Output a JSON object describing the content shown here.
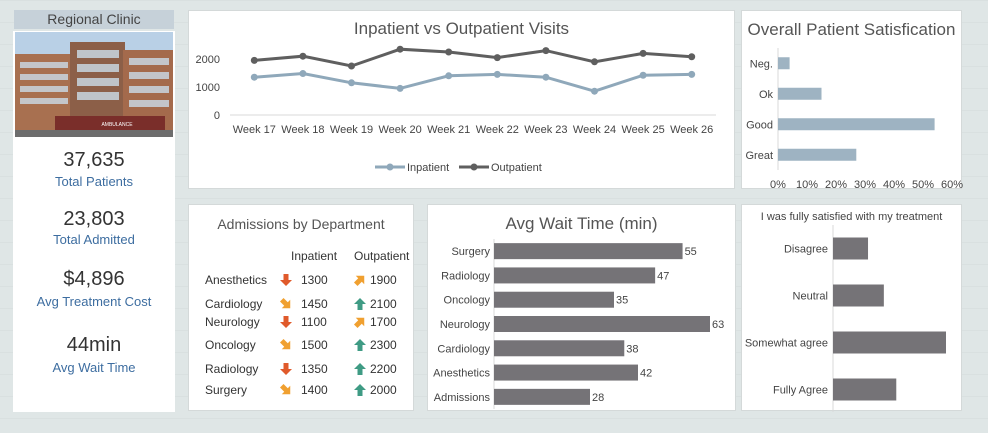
{
  "kpi": {
    "title": "Regional Clinic",
    "building_sign": "AMBULANCE",
    "items": [
      {
        "value": "37,635",
        "label": "Total Patients"
      },
      {
        "value": "23,803",
        "label": "Total Admitted"
      },
      {
        "value": "$4,896",
        "label": "Avg Treatment Cost"
      },
      {
        "value": "44min",
        "label": "Avg Wait Time"
      }
    ]
  },
  "colors": {
    "inpatient": "#8fa8ba",
    "outpatient": "#5f5f5f",
    "bar_blue": "#9eb3c2",
    "bar_gray": "#757377",
    "up_green": "#3f9b84",
    "down_red": "#e05a2b",
    "side_orange": "#f0a030"
  },
  "chart_data": [
    {
      "type": "line",
      "title": "Inpatient vs Outpatient Visits",
      "categories": [
        "Week 17",
        "Week 18",
        "Week 19",
        "Week 20",
        "Week 21",
        "Week 22",
        "Week 23",
        "Week 24",
        "Week 25",
        "Week 26"
      ],
      "series": [
        {
          "name": "Inpatient",
          "values": [
            1350,
            1480,
            1150,
            950,
            1400,
            1450,
            1350,
            850,
            1420,
            1450
          ]
        },
        {
          "name": "Outpatient",
          "values": [
            1950,
            2100,
            1750,
            2350,
            2250,
            2050,
            2300,
            1900,
            2200,
            2080
          ]
        }
      ],
      "yticks": [
        "0",
        "1000",
        "2000"
      ],
      "ylim": [
        0,
        2500
      ],
      "legend": "bottom"
    },
    {
      "type": "bar",
      "title": "Overall Patient Satisfication",
      "orientation": "horizontal",
      "categories": [
        "Neg.",
        "Ok",
        "Good",
        "Great"
      ],
      "values": [
        0.04,
        0.15,
        0.54,
        0.27
      ],
      "xticks": [
        "0%",
        "10%",
        "20%",
        "30%",
        "40%",
        "50%",
        "60%"
      ],
      "xlim": [
        0,
        0.6
      ]
    },
    {
      "type": "table",
      "title": "Admissions by Department",
      "columns": [
        "Inpatient",
        "Outpatient"
      ],
      "rows": [
        {
          "dept": "Anesthetics",
          "inpatient": "1300",
          "in_arrow": "down",
          "outpatient": "1900",
          "out_arrow": "up-right"
        },
        {
          "dept": "Cardiology",
          "inpatient": "1450",
          "in_arrow": "down-right",
          "outpatient": "2100",
          "out_arrow": "up"
        },
        {
          "dept": "Neurology",
          "inpatient": "1100",
          "in_arrow": "down",
          "outpatient": "1700",
          "out_arrow": "up-right"
        },
        {
          "dept": "Oncology",
          "inpatient": "1500",
          "in_arrow": "down-right",
          "outpatient": "2300",
          "out_arrow": "up"
        },
        {
          "dept": "Radiology",
          "inpatient": "1350",
          "in_arrow": "down",
          "outpatient": "2200",
          "out_arrow": "up"
        },
        {
          "dept": "Surgery",
          "inpatient": "1400",
          "in_arrow": "down-right",
          "outpatient": "2000",
          "out_arrow": "up"
        }
      ]
    },
    {
      "type": "bar",
      "title": "Avg Wait Time (min)",
      "orientation": "horizontal",
      "categories": [
        "Surgery",
        "Radiology",
        "Oncology",
        "Neurology",
        "Cardiology",
        "Anesthetics",
        "Admissions"
      ],
      "values": [
        55,
        47,
        35,
        63,
        38,
        42,
        28
      ],
      "xlim": [
        0,
        63
      ]
    },
    {
      "type": "bar",
      "title": "I was fully satisfied with my treatment",
      "orientation": "horizontal",
      "categories": [
        "Disagree",
        "Neutral",
        "Somewhat agree",
        "Fully Agree"
      ],
      "values": [
        0.31,
        0.45,
        1.0,
        0.56
      ],
      "xlim": [
        0,
        1
      ]
    }
  ]
}
